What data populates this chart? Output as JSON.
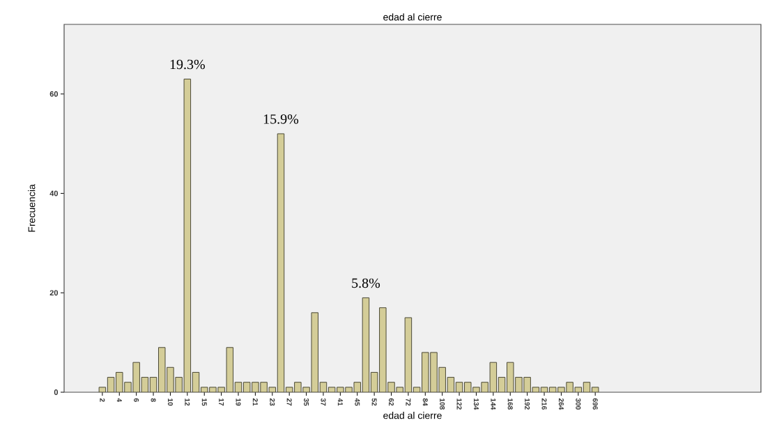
{
  "chart_data": {
    "type": "bar",
    "title": "edad al cierre",
    "xlabel": "edad al cierre",
    "ylabel": "Frecuencia",
    "categories": [
      "2",
      null,
      "4",
      null,
      "6",
      null,
      "8",
      null,
      "10",
      null,
      "12",
      null,
      "15",
      null,
      "17",
      null,
      "19",
      null,
      "21",
      null,
      "23",
      null,
      "27",
      null,
      "35",
      null,
      "37",
      null,
      "41",
      null,
      "45",
      null,
      "52",
      null,
      "62",
      null,
      "72",
      null,
      "84",
      null,
      "108",
      null,
      "122",
      null,
      "134",
      null,
      "144",
      null,
      "168",
      null,
      "192",
      null,
      "216",
      null,
      "264",
      null,
      "300",
      null,
      "696"
    ],
    "values": [
      1,
      3,
      4,
      2,
      6,
      3,
      3,
      9,
      5,
      3,
      63,
      4,
      1,
      1,
      1,
      9,
      2,
      2,
      2,
      2,
      1,
      52,
      1,
      2,
      1,
      16,
      2,
      1,
      1,
      1,
      2,
      19,
      4,
      17,
      2,
      1,
      15,
      1,
      8,
      8,
      5,
      3,
      2,
      2,
      1,
      2,
      6,
      3,
      6,
      3,
      3,
      1,
      1,
      1,
      1,
      2,
      1,
      2,
      1
    ],
    "color": "#d4cd98",
    "ylim": [
      0,
      74
    ],
    "yticks": [
      0,
      20,
      40,
      60
    ],
    "grid": false,
    "annotations": [
      {
        "text": "19.3%",
        "x": "12",
        "y": 63
      },
      {
        "text": "15.9%",
        "y": 52
      },
      {
        "text": "5.8%",
        "y": 19
      }
    ]
  }
}
